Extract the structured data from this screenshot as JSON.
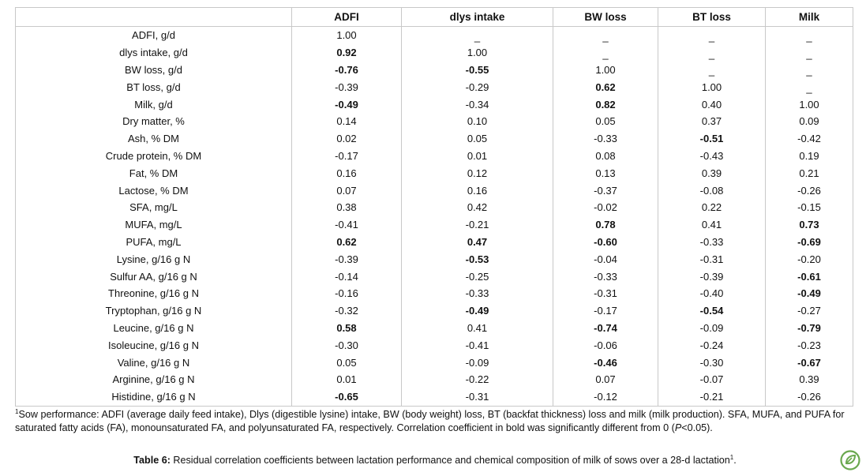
{
  "table": {
    "headers": [
      "",
      "ADFI",
      "dlys intake",
      "BW loss",
      "BT loss",
      "Milk"
    ],
    "rows": [
      {
        "label": "ADFI, g/d",
        "cells": [
          {
            "v": "1.00",
            "b": false
          },
          {
            "v": "_",
            "b": false
          },
          {
            "v": "_",
            "b": false
          },
          {
            "v": "_",
            "b": false
          },
          {
            "v": "_",
            "b": false
          }
        ]
      },
      {
        "label": "dlys intake, g/d",
        "cells": [
          {
            "v": "0.92",
            "b": true
          },
          {
            "v": "1.00",
            "b": false
          },
          {
            "v": "_",
            "b": false
          },
          {
            "v": "_",
            "b": false
          },
          {
            "v": "_",
            "b": false
          }
        ]
      },
      {
        "label": "BW loss, g/d",
        "cells": [
          {
            "v": "-0.76",
            "b": true
          },
          {
            "v": "-0.55",
            "b": true
          },
          {
            "v": "1.00",
            "b": false
          },
          {
            "v": "_",
            "b": false
          },
          {
            "v": "_",
            "b": false
          }
        ]
      },
      {
        "label": "BT loss, g/d",
        "cells": [
          {
            "v": "-0.39",
            "b": false
          },
          {
            "v": "-0.29",
            "b": false
          },
          {
            "v": "0.62",
            "b": true
          },
          {
            "v": "1.00",
            "b": false
          },
          {
            "v": "_",
            "b": false
          }
        ]
      },
      {
        "label": "Milk, g/d",
        "cells": [
          {
            "v": "-0.49",
            "b": true
          },
          {
            "v": "-0.34",
            "b": false
          },
          {
            "v": "0.82",
            "b": true
          },
          {
            "v": "0.40",
            "b": false
          },
          {
            "v": "1.00",
            "b": false
          }
        ]
      },
      {
        "label": "Dry matter, %",
        "cells": [
          {
            "v": "0.14",
            "b": false
          },
          {
            "v": "0.10",
            "b": false
          },
          {
            "v": "0.05",
            "b": false
          },
          {
            "v": "0.37",
            "b": false
          },
          {
            "v": "0.09",
            "b": false
          }
        ]
      },
      {
        "label": "Ash, % DM",
        "cells": [
          {
            "v": "0.02",
            "b": false
          },
          {
            "v": "0.05",
            "b": false
          },
          {
            "v": "-0.33",
            "b": false
          },
          {
            "v": "-0.51",
            "b": true
          },
          {
            "v": "-0.42",
            "b": false
          }
        ]
      },
      {
        "label": "Crude protein, % DM",
        "cells": [
          {
            "v": "-0.17",
            "b": false
          },
          {
            "v": "0.01",
            "b": false
          },
          {
            "v": "0.08",
            "b": false
          },
          {
            "v": "-0.43",
            "b": false
          },
          {
            "v": "0.19",
            "b": false
          }
        ]
      },
      {
        "label": "Fat, % DM",
        "cells": [
          {
            "v": "0.16",
            "b": false
          },
          {
            "v": "0.12",
            "b": false
          },
          {
            "v": "0.13",
            "b": false
          },
          {
            "v": "0.39",
            "b": false
          },
          {
            "v": "0.21",
            "b": false
          }
        ]
      },
      {
        "label": "Lactose, % DM",
        "cells": [
          {
            "v": "0.07",
            "b": false
          },
          {
            "v": "0.16",
            "b": false
          },
          {
            "v": "-0.37",
            "b": false
          },
          {
            "v": "-0.08",
            "b": false
          },
          {
            "v": "-0.26",
            "b": false
          }
        ]
      },
      {
        "label": "SFA, mg/L",
        "cells": [
          {
            "v": "0.38",
            "b": false
          },
          {
            "v": "0.42",
            "b": false
          },
          {
            "v": "-0.02",
            "b": false
          },
          {
            "v": "0.22",
            "b": false
          },
          {
            "v": "-0.15",
            "b": false
          }
        ]
      },
      {
        "label": "MUFA, mg/L",
        "cells": [
          {
            "v": "-0.41",
            "b": false
          },
          {
            "v": "-0.21",
            "b": false
          },
          {
            "v": "0.78",
            "b": true
          },
          {
            "v": "0.41",
            "b": false
          },
          {
            "v": "0.73",
            "b": true
          }
        ]
      },
      {
        "label": "PUFA, mg/L",
        "cells": [
          {
            "v": "0.62",
            "b": true
          },
          {
            "v": "0.47",
            "b": true
          },
          {
            "v": "-0.60",
            "b": true
          },
          {
            "v": "-0.33",
            "b": false
          },
          {
            "v": "-0.69",
            "b": true
          }
        ]
      },
      {
        "label": "Lysine, g/16 g N",
        "cells": [
          {
            "v": "-0.39",
            "b": false
          },
          {
            "v": "-0.53",
            "b": true
          },
          {
            "v": "-0.04",
            "b": false
          },
          {
            "v": "-0.31",
            "b": false
          },
          {
            "v": "-0.20",
            "b": false
          }
        ]
      },
      {
        "label": "Sulfur AA, g/16 g N",
        "cells": [
          {
            "v": "-0.14",
            "b": false
          },
          {
            "v": "-0.25",
            "b": false
          },
          {
            "v": "-0.33",
            "b": false
          },
          {
            "v": "-0.39",
            "b": false
          },
          {
            "v": "-0.61",
            "b": true
          }
        ]
      },
      {
        "label": "Threonine, g/16 g N",
        "cells": [
          {
            "v": "-0.16",
            "b": false
          },
          {
            "v": "-0.33",
            "b": false
          },
          {
            "v": "-0.31",
            "b": false
          },
          {
            "v": "-0.40",
            "b": false
          },
          {
            "v": "-0.49",
            "b": true
          }
        ]
      },
      {
        "label": "Tryptophan, g/16 g N",
        "cells": [
          {
            "v": "-0.32",
            "b": false
          },
          {
            "v": "-0.49",
            "b": true
          },
          {
            "v": "-0.17",
            "b": false
          },
          {
            "v": "-0.54",
            "b": true
          },
          {
            "v": "-0.27",
            "b": false
          }
        ]
      },
      {
        "label": "Leucine, g/16 g N",
        "cells": [
          {
            "v": "0.58",
            "b": true
          },
          {
            "v": "0.41",
            "b": false
          },
          {
            "v": "-0.74",
            "b": true
          },
          {
            "v": "-0.09",
            "b": false
          },
          {
            "v": "-0.79",
            "b": true
          }
        ]
      },
      {
        "label": "Isoleucine, g/16 g N",
        "cells": [
          {
            "v": "-0.30",
            "b": false
          },
          {
            "v": "-0.41",
            "b": false
          },
          {
            "v": "-0.06",
            "b": false
          },
          {
            "v": "-0.24",
            "b": false
          },
          {
            "v": "-0.23",
            "b": false
          }
        ]
      },
      {
        "label": "Valine, g/16 g N",
        "cells": [
          {
            "v": "0.05",
            "b": false
          },
          {
            "v": "-0.09",
            "b": false
          },
          {
            "v": "-0.46",
            "b": true
          },
          {
            "v": "-0.30",
            "b": false
          },
          {
            "v": "-0.67",
            "b": true
          }
        ]
      },
      {
        "label": "Arginine, g/16 g N",
        "cells": [
          {
            "v": "0.01",
            "b": false
          },
          {
            "v": "-0.22",
            "b": false
          },
          {
            "v": "0.07",
            "b": false
          },
          {
            "v": "-0.07",
            "b": false
          },
          {
            "v": "0.39",
            "b": false
          }
        ]
      },
      {
        "label": "Histidine, g/16 g N",
        "cells": [
          {
            "v": "-0.65",
            "b": true
          },
          {
            "v": "-0.31",
            "b": false
          },
          {
            "v": "-0.12",
            "b": false
          },
          {
            "v": "-0.21",
            "b": false
          },
          {
            "v": "-0.26",
            "b": false
          }
        ]
      }
    ]
  },
  "footnote": {
    "marker": "1",
    "text_before_p": "Sow performance: ADFI (average daily feed intake), Dlys (digestible lysine) intake, BW (body weight) loss, BT (backfat thickness) loss and milk (milk production). SFA, MUFA, and PUFA for saturated fatty acids (FA), monounsaturated FA, and polyunsaturated FA, respectively. Correlation coefficient in bold was significantly different from 0 (",
    "p_italic": "P",
    "text_after_p": "<0.05)."
  },
  "caption": {
    "label": "Table 6:",
    "text": " Residual correlation coefficients between lactation performance and chemical composition of milk of sows over a 28-d lactation",
    "marker": "1",
    "end": "."
  },
  "colors": {
    "grid": "#c8c8c8",
    "logo_green": "#6aa84f"
  },
  "logo_icon": "leaf-badge-icon"
}
